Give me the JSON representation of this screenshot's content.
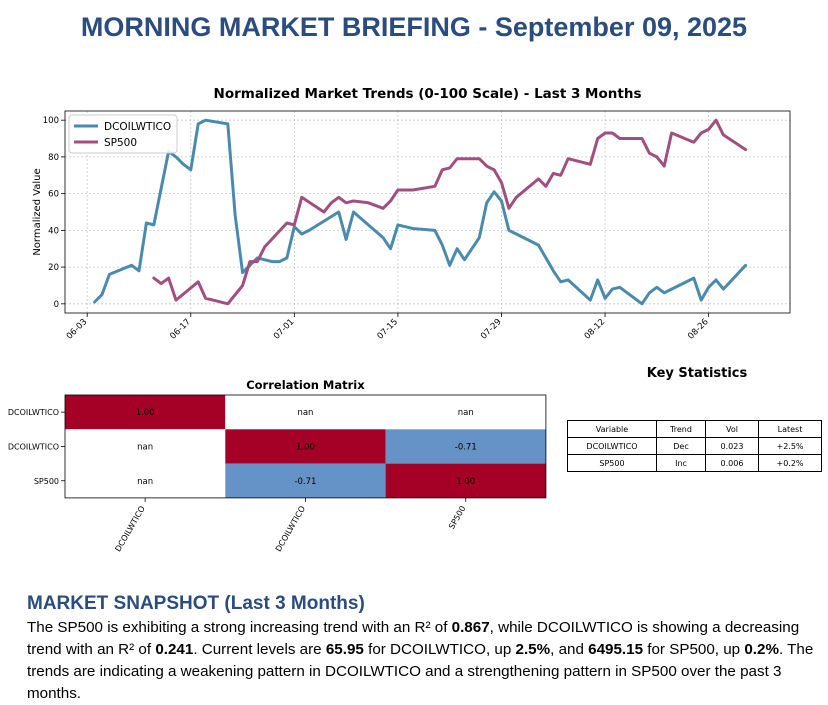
{
  "page": {
    "title": "MORNING MARKET BRIEFING - September 09, 2025"
  },
  "chart_data": [
    {
      "type": "line",
      "title": "Normalized Market Trends (0-100 Scale) - Last 3 Months",
      "xlabel": "",
      "ylabel": "Normalized Value",
      "x_tick_labels": [
        "06-03",
        "06-17",
        "07-01",
        "07-15",
        "07-29",
        "08-12",
        "08-26"
      ],
      "x_tick_days": [
        0,
        14,
        28,
        42,
        56,
        70,
        84
      ],
      "y_ticks": [
        0,
        20,
        40,
        60,
        80,
        100
      ],
      "xlim": [
        -3,
        95
      ],
      "ylim": [
        -5,
        105
      ],
      "grid": true,
      "legend_position": "top-left",
      "series": [
        {
          "name": "DCOILWTICO",
          "color": "#4a8bad",
          "x": [
            1,
            2,
            3,
            6,
            7,
            8,
            9,
            11,
            12,
            13,
            14,
            15,
            16,
            19,
            20,
            21,
            22,
            23,
            25,
            26,
            27,
            28,
            29,
            30,
            34,
            35,
            36,
            40,
            41,
            42,
            43,
            44,
            47,
            48,
            49,
            50,
            51,
            53,
            54,
            55,
            56,
            57,
            58,
            61,
            62,
            63,
            64,
            65,
            68,
            69,
            70,
            71,
            72,
            75,
            76,
            77,
            78,
            79,
            82,
            83,
            84,
            85,
            86,
            89
          ],
          "values": [
            1,
            5,
            16,
            21,
            18,
            44,
            43,
            83,
            80,
            76,
            73,
            98,
            100,
            98,
            48,
            17,
            21,
            25,
            23,
            23,
            25,
            42,
            38,
            40,
            50,
            35,
            50,
            36,
            30,
            43,
            42,
            41,
            40,
            32,
            21,
            30,
            24,
            36,
            55,
            61,
            56,
            40,
            38,
            32,
            25,
            18,
            12,
            13,
            2,
            13,
            3,
            8,
            9,
            0,
            6,
            9,
            6,
            8,
            14,
            2,
            9,
            13,
            8,
            21
          ]
        },
        {
          "name": "SP500",
          "color": "#a04f7f",
          "x": [
            9,
            10,
            11,
            12,
            15,
            16,
            17,
            19,
            21,
            22,
            23,
            24,
            27,
            28,
            29,
            32,
            33,
            34,
            35,
            36,
            38,
            40,
            41,
            42,
            43,
            44,
            47,
            48,
            49,
            50,
            51,
            53,
            54,
            55,
            56,
            57,
            58,
            61,
            62,
            63,
            64,
            65,
            68,
            69,
            70,
            71,
            72,
            75,
            76,
            77,
            78,
            79,
            82,
            83,
            84,
            85,
            86,
            89
          ],
          "values": [
            14,
            11,
            14,
            2,
            12,
            3,
            2,
            0,
            10,
            23,
            23,
            31,
            44,
            43,
            58,
            50,
            55,
            58,
            55,
            56,
            55,
            52,
            56,
            62,
            62,
            62,
            64,
            73,
            74,
            79,
            79,
            79,
            75,
            73,
            66,
            52,
            58,
            68,
            64,
            71,
            70,
            79,
            76,
            90,
            93,
            93,
            90,
            90,
            82,
            80,
            75,
            93,
            88,
            93,
            95,
            100,
            92,
            84
          ]
        }
      ]
    },
    {
      "type": "heatmap",
      "title": "Correlation Matrix",
      "row_labels": [
        "DCOILWTICO",
        "DCOILWTICO",
        "SP500"
      ],
      "col_labels": [
        "DCOILWTICO",
        "DCOILWTICO",
        "SP500"
      ],
      "values": [
        [
          1.0,
          null,
          null
        ],
        [
          null,
          1.0,
          -0.71
        ],
        [
          null,
          -0.71,
          1.0
        ]
      ],
      "cell_text": [
        [
          "1.00",
          "nan",
          "nan"
        ],
        [
          "nan",
          "1.00",
          "-0.71"
        ],
        [
          "nan",
          "-0.71",
          "1.00"
        ]
      ],
      "colors": {
        "high": "#a50026",
        "low": "#6693c7",
        "nan": "#ffffff"
      }
    },
    {
      "type": "table",
      "title": "Key Statistics",
      "headers": [
        "Variable",
        "Trend",
        "Vol",
        "Latest"
      ],
      "rows": [
        [
          "DCOILWTICO",
          "Dec",
          "0.023",
          "+2.5%"
        ],
        [
          "SP500",
          "Inc",
          "0.006",
          "+0.2%"
        ]
      ]
    }
  ],
  "snapshot": {
    "heading": "MARKET SNAPSHOT (Last 3 Months)",
    "t1": "The SP500 is exhibiting a strong increasing trend with an R² of ",
    "b1": "0.867",
    "t2": ", while DCOILWTICO is showing a decreasing trend with an R² of ",
    "b2": "0.241",
    "t3": ". Current levels are ",
    "b3": "65.95",
    "t4": " for DCOILWTICO, up ",
    "b4": "2.5%",
    "t5": ", and ",
    "b5": "6495.15",
    "t6": " for SP500, up ",
    "b6": "0.2%",
    "t7": ". The trends are indicating a weakening pattern in DCOILWTICO and a strengthening pattern in SP500 over the past 3 months."
  }
}
